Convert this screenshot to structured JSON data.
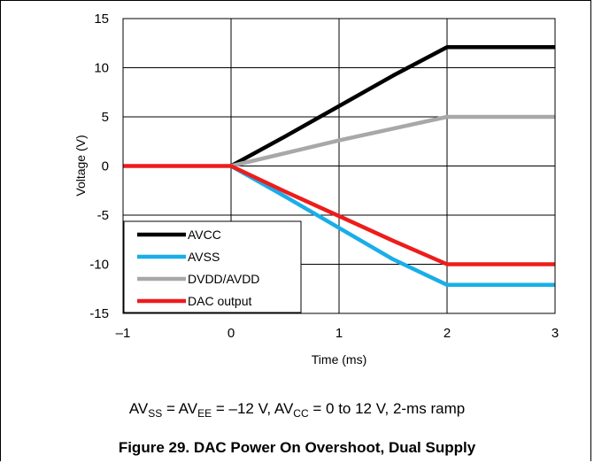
{
  "chart_data": {
    "type": "line",
    "xlabel": "Time (ms)",
    "ylabel": "Voltage (V)",
    "xlim": [
      -1,
      3
    ],
    "ylim": [
      -15,
      15
    ],
    "x_ticks": [
      -1,
      0,
      1,
      2,
      3
    ],
    "x_tick_labels": [
      "–1",
      "0",
      "1",
      "2",
      "3"
    ],
    "y_ticks": [
      15,
      10,
      5,
      0,
      -5,
      -10,
      -15
    ],
    "y_tick_labels": [
      "15",
      "10",
      "5",
      "0",
      "-5",
      "-10",
      "-15"
    ],
    "grid": true,
    "legend_position": "bottom-left",
    "series": [
      {
        "name": "AVCC",
        "color": "#000000",
        "x": [
          0,
          0.5,
          1,
          1.5,
          2,
          3
        ],
        "y": [
          0,
          3,
          6.1,
          9.2,
          12.1,
          12.1
        ]
      },
      {
        "name": "AVSS",
        "color": "#19aee8",
        "x": [
          0,
          0.5,
          1,
          1.5,
          2,
          3
        ],
        "y": [
          0,
          -3.1,
          -6.3,
          -9.5,
          -12.1,
          -12.1
        ]
      },
      {
        "name": "DVDD/AVDD",
        "color": "#a8a8a8",
        "x": [
          0,
          0.5,
          1,
          1.5,
          2,
          3
        ],
        "y": [
          0,
          1.3,
          2.6,
          3.8,
          5.0,
          5.0
        ]
      },
      {
        "name": "DAC output",
        "color": "#ee1c1c",
        "x": [
          -1,
          0,
          0.5,
          1,
          1.5,
          2,
          3
        ],
        "y": [
          0,
          0,
          -2.6,
          -5.1,
          -7.6,
          -10.0,
          -10.0
        ]
      }
    ]
  },
  "caption": {
    "p1": "AV",
    "s1": "SS",
    "p2": " = AV",
    "s2": "EE",
    "p3": " = –12 V, AV",
    "s3": "CC",
    "p4": " = 0 to 12 V, 2-ms ramp"
  },
  "figure_title": "Figure 29.  DAC Power On Overshoot, Dual Supply"
}
